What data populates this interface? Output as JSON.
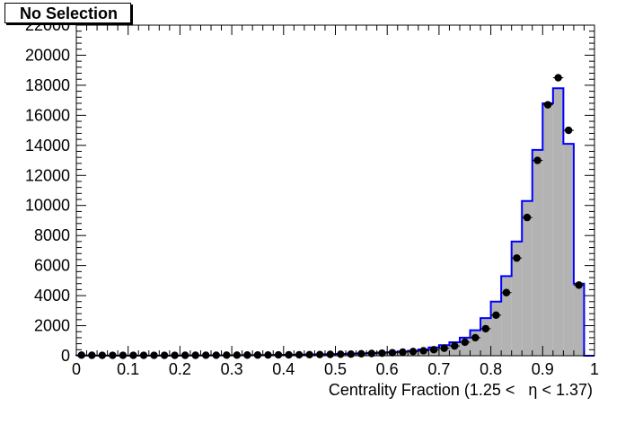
{
  "chart_data": {
    "type": "histogram",
    "title": "No Selection",
    "xlabel": "Centrality Fraction (1.25 <   η < 1.37)",
    "ylabel": "",
    "xlim": [
      0,
      1
    ],
    "ylim": [
      0,
      22000
    ],
    "x_ticks": [
      {
        "value": 0,
        "label": "0"
      },
      {
        "value": 0.1,
        "label": "0.1"
      },
      {
        "value": 0.2,
        "label": "0.2"
      },
      {
        "value": 0.3,
        "label": "0.3"
      },
      {
        "value": 0.4,
        "label": "0.4"
      },
      {
        "value": 0.5,
        "label": "0.5"
      },
      {
        "value": 0.6,
        "label": "0.6"
      },
      {
        "value": 0.7,
        "label": "0.7"
      },
      {
        "value": 0.8,
        "label": "0.8"
      },
      {
        "value": 0.9,
        "label": "0.9"
      },
      {
        "value": 1,
        "label": "1"
      }
    ],
    "y_ticks": [
      {
        "value": 0,
        "label": "0"
      },
      {
        "value": 2000,
        "label": "2000"
      },
      {
        "value": 4000,
        "label": "4000"
      },
      {
        "value": 6000,
        "label": "6000"
      },
      {
        "value": 8000,
        "label": "8000"
      },
      {
        "value": 10000,
        "label": "10000"
      },
      {
        "value": 12000,
        "label": "12000"
      },
      {
        "value": 14000,
        "label": "14000"
      },
      {
        "value": 16000,
        "label": "16000"
      },
      {
        "value": 18000,
        "label": "18000"
      },
      {
        "value": 20000,
        "label": "20000"
      },
      {
        "value": 22000,
        "label": "22000"
      }
    ],
    "bin_edges": [
      0,
      0.02,
      0.04,
      0.06,
      0.08,
      0.1,
      0.12,
      0.14,
      0.16,
      0.18,
      0.2,
      0.22,
      0.24,
      0.26,
      0.28,
      0.3,
      0.32,
      0.34,
      0.36,
      0.38,
      0.4,
      0.42,
      0.44,
      0.46,
      0.48,
      0.5,
      0.52,
      0.54,
      0.56,
      0.58,
      0.6,
      0.62,
      0.64,
      0.66,
      0.68,
      0.7,
      0.72,
      0.74,
      0.76,
      0.78,
      0.8,
      0.82,
      0.84,
      0.86,
      0.88,
      0.9,
      0.92,
      0.94,
      0.96,
      0.98,
      1.0
    ],
    "series": [
      {
        "kind": "histogram",
        "fill": "#b3b3b3",
        "line": "#0000ff",
        "values": [
          15,
          10,
          10,
          10,
          10,
          10,
          10,
          10,
          10,
          10,
          12,
          15,
          18,
          22,
          25,
          30,
          35,
          40,
          45,
          50,
          60,
          70,
          80,
          90,
          100,
          120,
          140,
          160,
          180,
          210,
          240,
          280,
          330,
          420,
          550,
          700,
          900,
          1200,
          1700,
          2500,
          3600,
          5300,
          7600,
          10300,
          13700,
          16800,
          17800,
          14100,
          4800,
          0
        ]
      },
      {
        "kind": "points",
        "color": "#000000",
        "values": [
          40,
          30,
          25,
          25,
          25,
          25,
          25,
          25,
          25,
          25,
          30,
          30,
          35,
          35,
          40,
          40,
          45,
          45,
          50,
          55,
          60,
          65,
          70,
          80,
          90,
          100,
          110,
          130,
          150,
          170,
          200,
          240,
          280,
          330,
          400,
          500,
          650,
          900,
          1200,
          1800,
          2700,
          4200,
          6500,
          9200,
          13000,
          16700,
          18500,
          15000,
          4700,
          0
        ]
      }
    ]
  }
}
